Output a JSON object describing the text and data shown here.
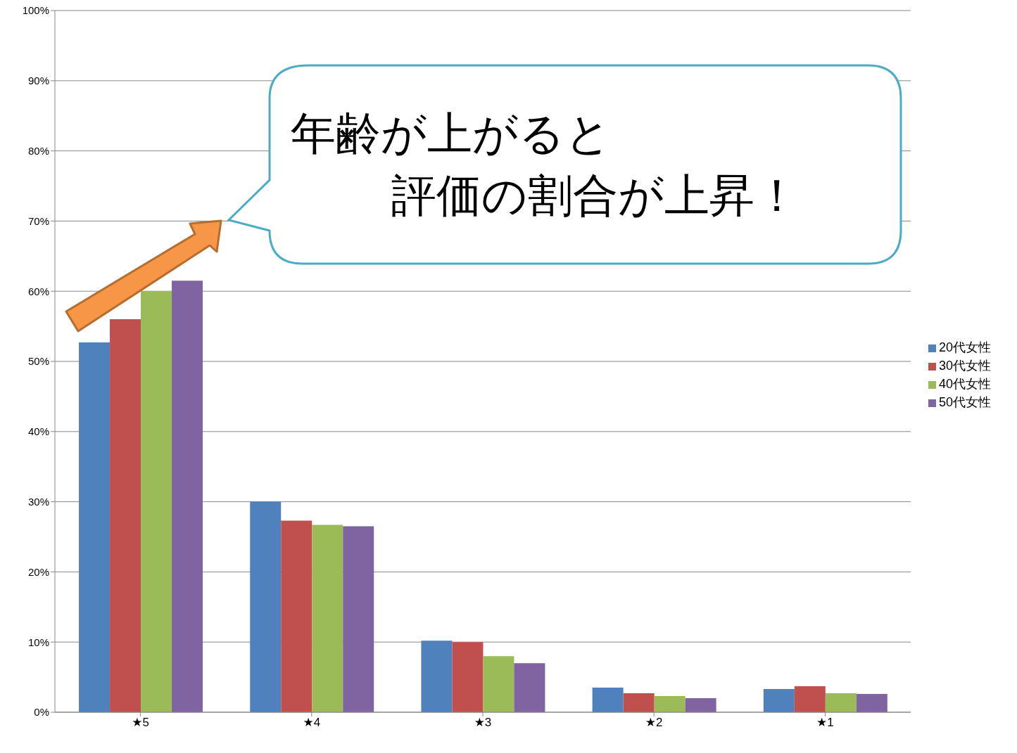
{
  "chart_data": {
    "type": "bar",
    "categories": [
      "★5",
      "★4",
      "★3",
      "★2",
      "★1"
    ],
    "series": [
      {
        "name": "20代女性",
        "color": "#4f81bd",
        "values": [
          52.7,
          30.0,
          10.2,
          3.5,
          3.3
        ]
      },
      {
        "name": "30代女性",
        "color": "#c0504d",
        "values": [
          56.0,
          27.3,
          10.0,
          2.7,
          3.7
        ]
      },
      {
        "name": "40代女性",
        "color": "#9bbb59",
        "values": [
          60.0,
          26.7,
          8.0,
          2.3,
          2.7
        ]
      },
      {
        "name": "50代女性",
        "color": "#8064a2",
        "values": [
          61.5,
          26.5,
          7.0,
          2.0,
          2.6
        ]
      }
    ],
    "ylim": [
      0,
      100
    ],
    "yticks": [
      {
        "value": 0,
        "label": "0%"
      },
      {
        "value": 10,
        "label": "10%"
      },
      {
        "value": 20,
        "label": "20%"
      },
      {
        "value": 30,
        "label": "30%"
      },
      {
        "value": 40,
        "label": "40%"
      },
      {
        "value": 50,
        "label": "50%"
      },
      {
        "value": 60,
        "label": "60%"
      },
      {
        "value": 70,
        "label": "70%"
      },
      {
        "value": 80,
        "label": "80%"
      },
      {
        "value": 90,
        "label": "90%"
      },
      {
        "value": 100,
        "label": "100%"
      }
    ],
    "grid": "y",
    "legend": "right",
    "annotations": [
      "年齢が上がると",
      "評価の割合が上昇！"
    ]
  }
}
